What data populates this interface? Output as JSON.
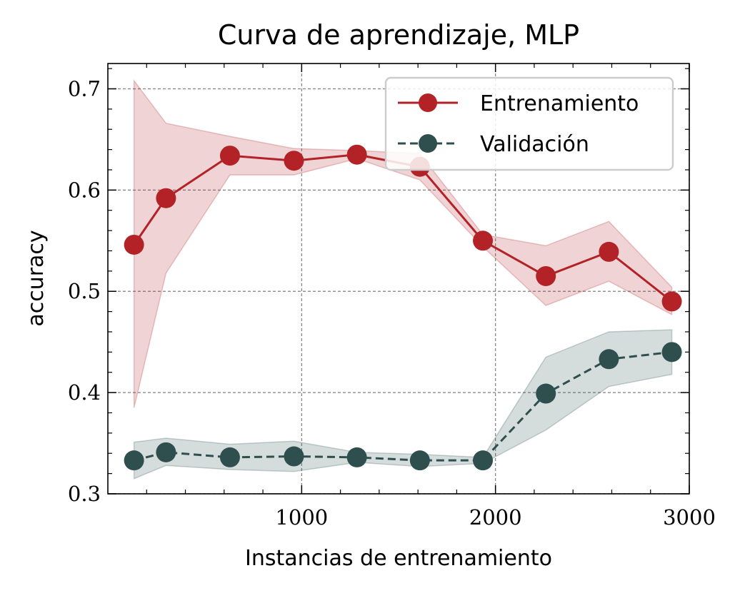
{
  "chart_data": {
    "type": "line",
    "title": "Curva de aprendizaje, MLP",
    "xlabel": "Instancias de entrenamiento",
    "ylabel": "accuracy",
    "xlim": [
      0,
      3000
    ],
    "ylim": [
      0.3,
      0.725
    ],
    "xticks": [
      1000,
      2000,
      3000
    ],
    "xtick_labels": [
      "1000",
      "2000",
      "3000"
    ],
    "yticks": [
      0.3,
      0.4,
      0.5,
      0.6,
      0.7
    ],
    "ytick_labels": [
      "0.3",
      "0.4",
      "0.5",
      "0.6",
      "0.7"
    ],
    "grid": true,
    "legend_position": "top-right",
    "x": [
      135,
      300,
      630,
      960,
      1285,
      1610,
      1935,
      2260,
      2585,
      2910
    ],
    "series": [
      {
        "name": "Entrenamiento",
        "color": "#b22226",
        "line_style": "solid",
        "values": [
          0.546,
          0.592,
          0.634,
          0.629,
          0.635,
          0.623,
          0.55,
          0.515,
          0.539,
          0.49
        ],
        "band_upper": [
          0.708,
          0.666,
          0.653,
          0.641,
          0.639,
          0.636,
          0.556,
          0.545,
          0.569,
          0.504
        ],
        "band_lower": [
          0.385,
          0.518,
          0.615,
          0.615,
          0.631,
          0.61,
          0.544,
          0.486,
          0.51,
          0.477
        ]
      },
      {
        "name": "Validación",
        "color": "#2f4f4f",
        "line_style": "dashed",
        "values": [
          0.333,
          0.341,
          0.336,
          0.337,
          0.336,
          0.333,
          0.333,
          0.399,
          0.433,
          0.44
        ],
        "band_upper": [
          0.351,
          0.355,
          0.349,
          0.352,
          0.341,
          0.339,
          0.336,
          0.435,
          0.46,
          0.462
        ],
        "band_lower": [
          0.315,
          0.328,
          0.324,
          0.322,
          0.331,
          0.327,
          0.33,
          0.363,
          0.406,
          0.418
        ]
      }
    ]
  }
}
